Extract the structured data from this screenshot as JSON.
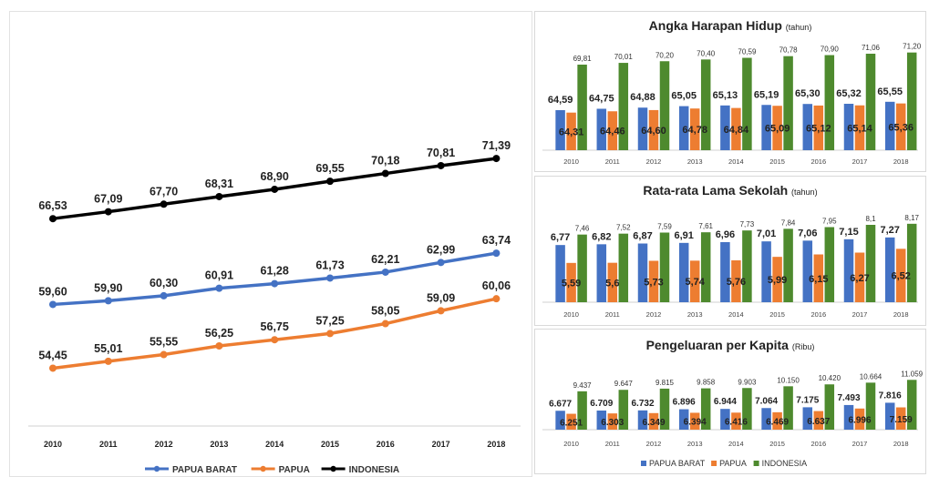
{
  "colors": {
    "papua_barat": "#4472C4",
    "papua": "#ED7D31",
    "indonesia": "#000000",
    "indonesia_bar": "#4E8A2E"
  },
  "chart_data": [
    {
      "type": "line",
      "title": "",
      "x": [
        "2010",
        "2011",
        "2012",
        "2013",
        "2014",
        "2015",
        "2016",
        "2017",
        "2018"
      ],
      "ylim": [
        50,
        75
      ],
      "series": [
        {
          "name": "PAPUA BARAT",
          "values": [
            "59,60",
            "59,90",
            "60,30",
            "60,91",
            "61,28",
            "61,73",
            "62,21",
            "62,99",
            "63,74"
          ]
        },
        {
          "name": "PAPUA",
          "values": [
            "54,45",
            "55,01",
            "55,55",
            "56,25",
            "56,75",
            "57,25",
            "58,05",
            "59,09",
            "60,06"
          ]
        },
        {
          "name": "INDONESIA",
          "values": [
            "66,53",
            "67,09",
            "67,70",
            "68,31",
            "68,90",
            "69,55",
            "70,18",
            "70,81",
            "71,39"
          ]
        }
      ],
      "legend": [
        "PAPUA BARAT",
        "PAPUA",
        "INDONESIA"
      ],
      "legend_position": "bottom"
    },
    {
      "type": "bar",
      "title": "Angka Harapan Hidup",
      "unit": "(tahun)",
      "categories": [
        "2010",
        "2011",
        "2012",
        "2013",
        "2014",
        "2015",
        "2016",
        "2017",
        "2018"
      ],
      "ylim": [
        60,
        72
      ],
      "series": [
        {
          "name": "PAPUA BARAT",
          "values": [
            "64,59",
            "64,75",
            "64,88",
            "65,05",
            "65,13",
            "65,19",
            "65,30",
            "65,32",
            "65,55"
          ]
        },
        {
          "name": "PAPUA",
          "values": [
            "64,31",
            "64,46",
            "64,60",
            "64,78",
            "64,84",
            "65,09",
            "65,12",
            "65,14",
            "65,36"
          ]
        },
        {
          "name": "INDONESIA",
          "values": [
            "69,81",
            "70,01",
            "70,20",
            "70,40",
            "70,59",
            "70,78",
            "70,90",
            "71,06",
            "71,20"
          ]
        }
      ]
    },
    {
      "type": "bar",
      "title": "Rata-rata Lama Sekolah",
      "unit": "(tahun)",
      "categories": [
        "2010",
        "2011",
        "2012",
        "2013",
        "2014",
        "2015",
        "2016",
        "2017",
        "2018"
      ],
      "ylim": [
        3,
        9
      ],
      "series": [
        {
          "name": "PAPUA BARAT",
          "values": [
            "6,77",
            "6,82",
            "6,87",
            "6,91",
            "6,96",
            "7,01",
            "7,06",
            "7,15",
            "7,27"
          ]
        },
        {
          "name": "PAPUA",
          "values": [
            "5,59",
            "5,6",
            "5,73",
            "5,74",
            "5,76",
            "5,99",
            "6,15",
            "6,27",
            "6,52"
          ]
        },
        {
          "name": "INDONESIA",
          "values": [
            "7,46",
            "7,52",
            "7,59",
            "7,61",
            "7,73",
            "7,84",
            "7,95",
            "8,1",
            "8,17"
          ]
        }
      ]
    },
    {
      "type": "bar",
      "title": "Pengeluaran per Kapita",
      "unit": "(Ribu)",
      "categories": [
        "2010",
        "2011",
        "2012",
        "2013",
        "2014",
        "2015",
        "2016",
        "2017",
        "2018"
      ],
      "ylim": [
        4000,
        12000
      ],
      "series": [
        {
          "name": "PAPUA BARAT",
          "values": [
            "6.677",
            "6.709",
            "6.732",
            "6.896",
            "6.944",
            "7.064",
            "7.175",
            "7.493",
            "7.816"
          ]
        },
        {
          "name": "PAPUA",
          "values": [
            "6.251",
            "6.303",
            "6.349",
            "6.394",
            "6.416",
            "6.469",
            "6.637",
            "6.996",
            "7.159"
          ]
        },
        {
          "name": "INDONESIA",
          "values": [
            "9.437",
            "9.647",
            "9.815",
            "9.858",
            "9.903",
            "10.150",
            "10.420",
            "10.664",
            "11.059"
          ]
        }
      ],
      "legend": [
        "PAPUA BARAT",
        "PAPUA",
        "INDONESIA"
      ],
      "legend_position": "bottom"
    }
  ]
}
